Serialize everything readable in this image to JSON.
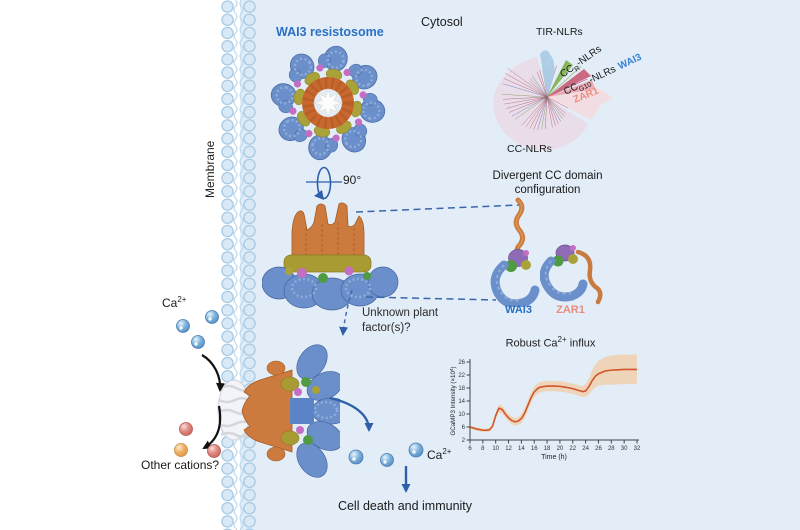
{
  "scene": {
    "membrane_label": "Membrane",
    "cytosol_label": "Cytosol",
    "resistosome_label": "WAI3 resistosome",
    "rotation_label": "90°",
    "divergent": {
      "line1": "Divergent CC domain",
      "line2": "configuration"
    },
    "unknown": {
      "line1": "Unknown plant",
      "line2": "factor(s)?"
    },
    "wai3_label": "WAI3",
    "zar1_label": "ZAR1",
    "calcium": {
      "base": "Ca",
      "sup": "2+"
    },
    "other_cations_label": "Other cations?",
    "cell_death_label": "Cell death and immunity"
  },
  "tree": {
    "tir_label": "TIR-NLRs",
    "cc_label": "CC-NLRs",
    "ccr": {
      "base": "CC",
      "sub": "R",
      "rest": "-NLRs"
    },
    "ccg10": {
      "base": "CC",
      "sub": "G10",
      "rest": "-NLRs"
    },
    "wai3_label": "WAI3",
    "zar1_label": "ZAR1"
  },
  "colors": {
    "cytosol_bg": "#e2edf8",
    "membrane_fill": "#d9e9f6",
    "membrane_stroke": "#a6c9e4",
    "wai3_blue": "#2a70c4",
    "zar1_salmon": "#ec8b7d",
    "structure_blue": "#6b8fca",
    "structure_orange": "#cc7a3e",
    "structure_yellow": "#a89b33",
    "arrow_blue": "#2f5fa8",
    "tree_fan": "#e9dde9",
    "tree_tir_wedge": "#a9c9e3",
    "tree_green_wedge": "#82b14f",
    "tree_crimson_wedge": "#c85a72"
  },
  "chart_data": {
    "type": "line",
    "title": {
      "pre": "Robust Ca",
      "sup": "2+",
      "post": " influx"
    },
    "xlabel": "Time (h)",
    "ylabel_parts": [
      "GCaMP3 Intensity (×10",
      "4",
      ")"
    ],
    "xlim": [
      6,
      32
    ],
    "ylim": [
      2,
      26
    ],
    "xticks": [
      6,
      8,
      10,
      12,
      14,
      16,
      18,
      20,
      22,
      24,
      26,
      28,
      30,
      32
    ],
    "yticks": [
      2,
      6,
      10,
      14,
      18,
      22,
      26
    ],
    "legend": "none",
    "grid": false,
    "x": [
      6,
      7,
      8,
      8.5,
      9,
      9.5,
      10,
      10.5,
      11,
      11.5,
      12,
      12.5,
      13,
      13.5,
      14,
      14.5,
      15,
      15.5,
      16,
      16.5,
      17,
      18,
      19,
      20,
      21,
      22,
      23,
      23.5,
      24,
      24.5,
      25,
      25.5,
      26,
      27,
      28,
      29,
      30,
      31,
      32
    ],
    "mean": [
      6.0,
      5.4,
      5.0,
      5.0,
      5.1,
      6.2,
      9.5,
      11.8,
      11.4,
      10.0,
      8.8,
      8.0,
      7.6,
      7.8,
      8.6,
      10.2,
      12.6,
      15.0,
      16.8,
      17.8,
      18.3,
      18.6,
      18.6,
      18.5,
      18.2,
      17.8,
      17.2,
      16.9,
      17.1,
      18.4,
      20.2,
      21.6,
      22.4,
      23.2,
      23.5,
      23.6,
      23.7,
      23.7,
      23.7
    ],
    "upper": [
      6.5,
      5.9,
      5.5,
      5.5,
      5.7,
      7.0,
      10.4,
      13.0,
      12.6,
      11.2,
      10.0,
      9.2,
      8.8,
      9.0,
      10.0,
      11.8,
      14.2,
      16.6,
      18.4,
      19.4,
      19.9,
      20.2,
      20.2,
      20.1,
      19.8,
      19.4,
      18.8,
      18.6,
      19.2,
      21.0,
      23.4,
      25.2,
      26.4,
      27.5,
      28.0,
      28.2,
      28.3,
      28.3,
      28.3
    ],
    "lower": [
      5.5,
      4.9,
      4.5,
      4.5,
      4.6,
      5.5,
      8.6,
      10.6,
      10.2,
      8.8,
      7.6,
      6.8,
      6.4,
      6.6,
      7.2,
      8.6,
      11.0,
      13.4,
      15.2,
      16.2,
      16.7,
      17.0,
      17.0,
      16.9,
      16.6,
      16.2,
      15.6,
      15.2,
      15.3,
      16.0,
      17.2,
      18.2,
      18.7,
      19.0,
      19.0,
      19.1,
      19.2,
      19.2,
      19.2
    ],
    "line_color": "#d2552b",
    "band_color": "#f6c48f"
  }
}
